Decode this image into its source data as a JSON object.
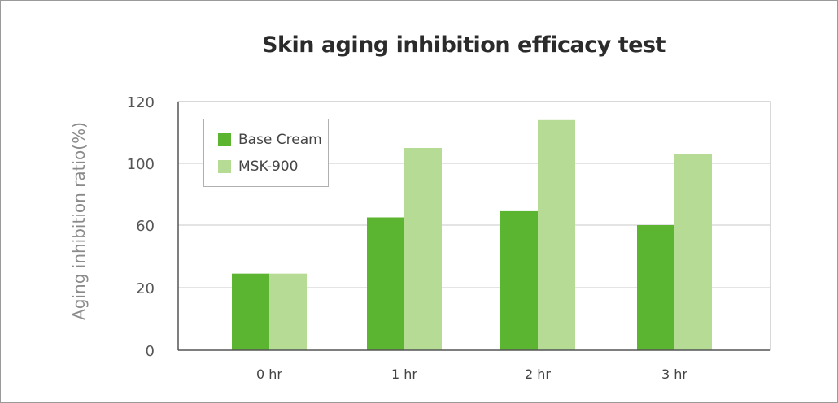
{
  "chart_data": {
    "type": "bar",
    "title": "Skin aging inhibition efficacy test",
    "xlabel": "",
    "ylabel": "Aging inhibition ratio(%)",
    "categories": [
      "0 hr",
      "1 hr",
      "2 hr",
      "3 hr"
    ],
    "y_ticks": [
      "0",
      "20",
      "60",
      "100",
      "120"
    ],
    "series": [
      {
        "name": "Base Cream",
        "color": "#5cb531",
        "values": [
          29,
          65,
          69,
          60
        ]
      },
      {
        "name": "MSK-900",
        "color": "#b5db95",
        "values": [
          29,
          105,
          114,
          103
        ]
      }
    ],
    "legend_position": "top-left",
    "grid": true
  }
}
